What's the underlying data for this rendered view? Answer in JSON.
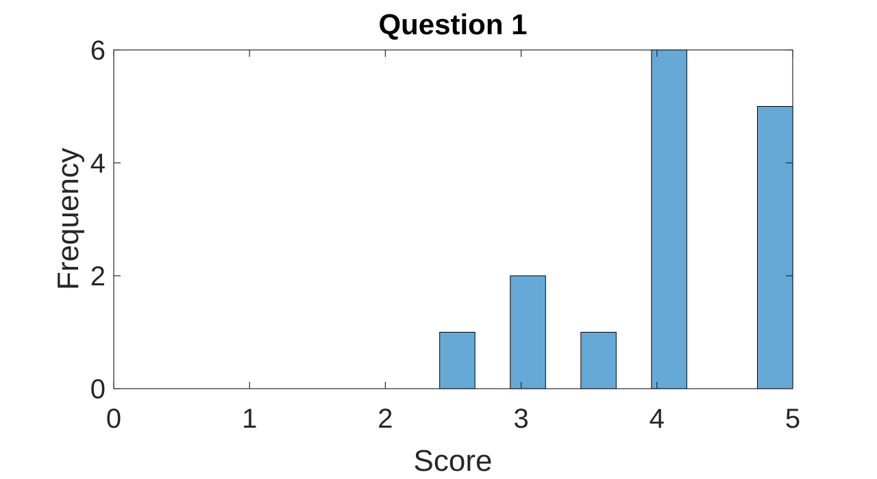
{
  "chart_data": {
    "type": "bar",
    "title": "Question 1",
    "xlabel": "Score",
    "ylabel": "Frequency",
    "xlim": [
      0,
      5
    ],
    "ylim": [
      0,
      6
    ],
    "x_ticks": [
      0,
      1,
      2,
      3,
      4,
      5
    ],
    "y_ticks": [
      0,
      2,
      4,
      6
    ],
    "bar_color": "#67a9d6",
    "bins": [
      {
        "start": 2.4,
        "end": 2.66,
        "value": 1
      },
      {
        "start": 2.92,
        "end": 3.18,
        "value": 2
      },
      {
        "start": 3.44,
        "end": 3.7,
        "value": 1
      },
      {
        "start": 3.96,
        "end": 4.22,
        "value": 6
      },
      {
        "start": 4.74,
        "end": 5.0,
        "value": 5
      }
    ],
    "grid": false,
    "legend": "none"
  }
}
